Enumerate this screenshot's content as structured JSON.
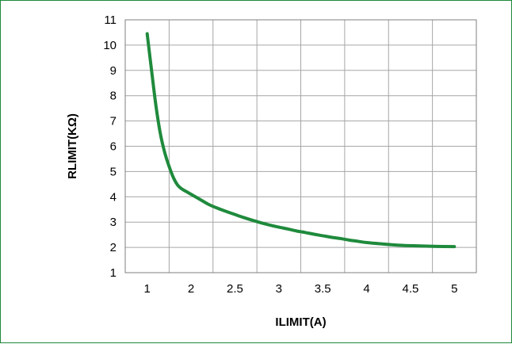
{
  "chart_data": {
    "type": "line",
    "title": "",
    "xlabel": "ILIMIT(A)",
    "ylabel": "RLIMIT(KΩ)",
    "x_ticks": [
      "1",
      "2",
      "2.5",
      "3",
      "3.5",
      "4",
      "4.5",
      "5"
    ],
    "y_ticks": [
      "1",
      "2",
      "3",
      "4",
      "5",
      "6",
      "7",
      "8",
      "9",
      "10",
      "11"
    ],
    "xlim": [
      1,
      5
    ],
    "ylim": [
      1,
      11
    ],
    "grid": true,
    "series": [
      {
        "color": "#1f8a3c",
        "points": [
          [
            1.0,
            10.45
          ],
          [
            1.1,
            9.0
          ],
          [
            1.2,
            7.6
          ],
          [
            1.3,
            6.5
          ],
          [
            1.4,
            5.75
          ],
          [
            1.5,
            5.2
          ],
          [
            1.6,
            4.75
          ],
          [
            1.7,
            4.45
          ],
          [
            1.8,
            4.3
          ],
          [
            1.9,
            4.2
          ],
          [
            2.0,
            4.1
          ],
          [
            2.1,
            3.9
          ],
          [
            2.2,
            3.7
          ],
          [
            2.3,
            3.55
          ],
          [
            2.4,
            3.42
          ],
          [
            2.5,
            3.3
          ],
          [
            2.6,
            3.18
          ],
          [
            2.7,
            3.07
          ],
          [
            2.8,
            2.97
          ],
          [
            2.9,
            2.88
          ],
          [
            3.0,
            2.8
          ],
          [
            3.1,
            2.73
          ],
          [
            3.2,
            2.65
          ],
          [
            3.3,
            2.59
          ],
          [
            3.4,
            2.52
          ],
          [
            3.5,
            2.46
          ],
          [
            3.6,
            2.4
          ],
          [
            3.7,
            2.35
          ],
          [
            3.8,
            2.29
          ],
          [
            3.9,
            2.24
          ],
          [
            4.0,
            2.19
          ],
          [
            4.2,
            2.13
          ],
          [
            4.4,
            2.08
          ],
          [
            4.6,
            2.06
          ],
          [
            4.8,
            2.04
          ],
          [
            5.0,
            2.03
          ]
        ]
      }
    ]
  }
}
